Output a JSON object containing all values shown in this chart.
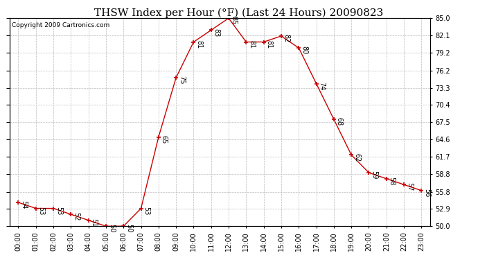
{
  "title": "THSW Index per Hour (°F) (Last 24 Hours) 20090823",
  "copyright": "Copyright 2009 Cartronics.com",
  "hours": [
    "00:00",
    "01:00",
    "02:00",
    "03:00",
    "04:00",
    "05:00",
    "06:00",
    "07:00",
    "08:00",
    "09:00",
    "10:00",
    "11:00",
    "12:00",
    "13:00",
    "14:00",
    "15:00",
    "16:00",
    "17:00",
    "18:00",
    "19:00",
    "20:00",
    "21:00",
    "22:00",
    "23:00"
  ],
  "values": [
    54,
    53,
    53,
    52,
    51,
    50,
    50,
    53,
    65,
    75,
    81,
    83,
    85,
    81,
    81,
    82,
    80,
    74,
    68,
    62,
    59,
    58,
    57,
    56
  ],
  "line_color": "#cc0000",
  "marker_color": "#cc0000",
  "bg_color": "#ffffff",
  "plot_bg_color": "#ffffff",
  "grid_color": "#bbbbbb",
  "text_color": "#000000",
  "ylim": [
    50.0,
    85.0
  ],
  "yticks": [
    50.0,
    52.9,
    55.8,
    58.8,
    61.7,
    64.6,
    67.5,
    70.4,
    73.3,
    76.2,
    79.2,
    82.1,
    85.0
  ],
  "title_fontsize": 11,
  "label_fontsize": 7,
  "tick_fontsize": 7,
  "copyright_fontsize": 6.5
}
